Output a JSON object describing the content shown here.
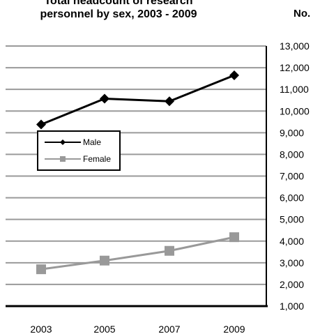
{
  "chart_data": {
    "type": "line",
    "title_line1": "Total headcount of research",
    "title_line2": "personnel by sex, 2003 - 2009",
    "unit_label": "No.",
    "categories": [
      "2003",
      "2005",
      "2007",
      "2009"
    ],
    "y_ticks": [
      "13,000",
      "12,000",
      "11,000",
      "10,000",
      "9,000",
      "8,000",
      "7,000",
      "6,000",
      "5,000",
      "4,000",
      "3,000",
      "2,000",
      "1,000"
    ],
    "ylim": [
      1000,
      13000
    ],
    "grid": true,
    "legend_position": "left-middle",
    "series": [
      {
        "name": "Male",
        "values": [
          9380,
          10570,
          10450,
          11650
        ],
        "color": "#000000",
        "marker": "diamond"
      },
      {
        "name": "Female",
        "values": [
          2700,
          3100,
          3550,
          4180
        ],
        "color": "#999999",
        "marker": "square"
      }
    ]
  }
}
